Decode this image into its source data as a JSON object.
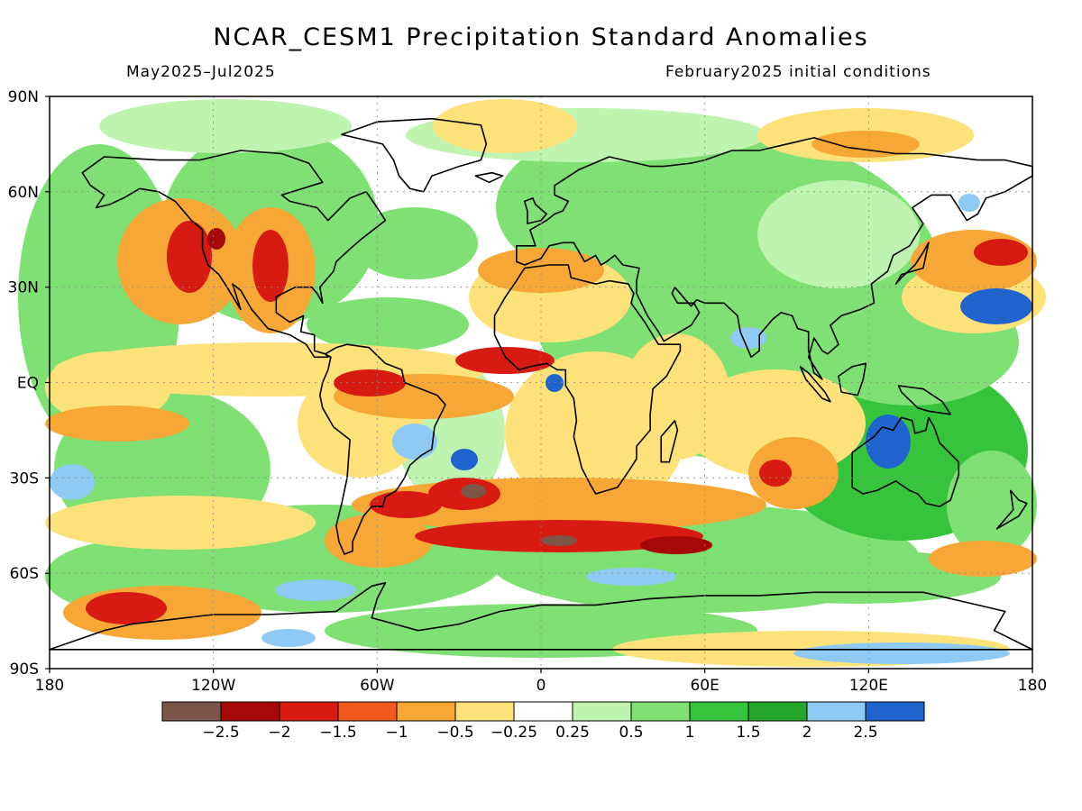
{
  "title": "NCAR_CESM1 Precipitation Standard Anomalies",
  "period": "May2025–Jul2025",
  "init": "February2025 initial conditions",
  "lat_ticks": [
    "90N",
    "60N",
    "30N",
    "EQ",
    "30S",
    "60S",
    "90S"
  ],
  "lon_ticks": [
    "180",
    "120W",
    "60W",
    "0",
    "60E",
    "120E",
    "180"
  ],
  "colorbar": {
    "labels": [
      "−2.5",
      "−2",
      "−1.5",
      "−1",
      "−0.5",
      "−0.25",
      "0.25",
      "0.5",
      "1",
      "1.5",
      "2",
      "2.5"
    ],
    "colors": [
      "#7b5548",
      "#a60808",
      "#d81b12",
      "#f15a1c",
      "#f7a735",
      "#fde27a",
      "#ffffff",
      "#bff3b0",
      "#7fe173",
      "#36c43d",
      "#23a62a",
      "#8fcaf4",
      "#1f64cd"
    ]
  },
  "palette": {
    "frame": "#000000",
    "grid": "#8b8b8b"
  }
}
